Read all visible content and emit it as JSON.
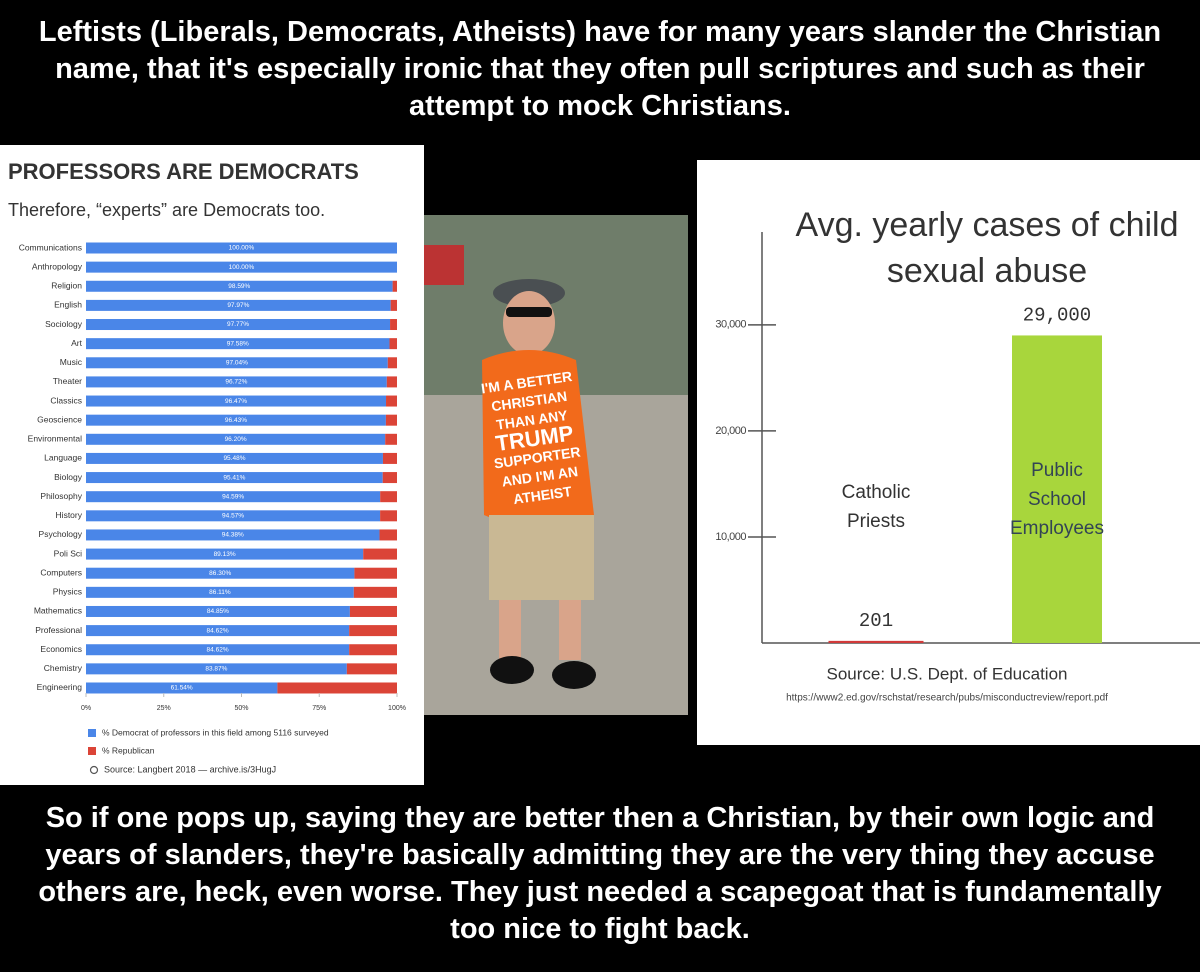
{
  "top_text": "Leftists  (Liberals, Democrats, Atheists) have for many years slander the Christian name, that it's especially ironic that they often pull scriptures and such as their attempt to mock Christians.",
  "chart_data": [
    {
      "type": "stacked-bar-horizontal",
      "title": "PROFESSORS ARE DEMOCRATS",
      "subtitle": "Therefore, “experts” are Democrats too.",
      "categories": [
        "Communications",
        "Anthropology",
        "Religion",
        "English",
        "Sociology",
        "Art",
        "Music",
        "Theater",
        "Classics",
        "Geoscience",
        "Environmental",
        "Language",
        "Biology",
        "Philosophy",
        "History",
        "Psychology",
        "Poli Sci",
        "Computers",
        "Physics",
        "Mathematics",
        "Professional",
        "Economics",
        "Chemistry",
        "Engineering"
      ],
      "series": [
        {
          "name": "% Democrat of professors in this field among 5116 surveyed",
          "color": "#4a86e8",
          "values": [
            100.0,
            100.0,
            98.59,
            97.97,
            97.77,
            97.58,
            97.04,
            96.72,
            96.47,
            96.43,
            96.2,
            95.48,
            95.41,
            94.59,
            94.57,
            94.38,
            89.13,
            86.3,
            86.11,
            84.85,
            84.62,
            84.62,
            83.87,
            61.54
          ],
          "value_labels": [
            "100.00%",
            "100.00%",
            "98.59%",
            "97.97%",
            "97.77%",
            "97.58%",
            "97.04%",
            "96.72%",
            "96.47%",
            "96.43%",
            "96.20%",
            "95.48%",
            "95.41%",
            "94.59%",
            "94.57%",
            "94.38%",
            "89.13%",
            "86.30%",
            "86.11%",
            "84.85%",
            "84.62%",
            "84.62%",
            "83.87%",
            "61.54%"
          ]
        },
        {
          "name": "% Republican",
          "color": "#db4437",
          "values": [
            0,
            0,
            1.41,
            2.03,
            2.23,
            2.42,
            2.96,
            3.28,
            3.53,
            3.57,
            3.8,
            4.52,
            4.59,
            5.41,
            5.43,
            5.62,
            10.87,
            13.7,
            13.89,
            15.15,
            15.38,
            15.38,
            16.13,
            38.46
          ]
        }
      ],
      "xlim": [
        0,
        100
      ],
      "xticks": [
        {
          "value": 0,
          "label": "0%"
        },
        {
          "value": 25,
          "label": "25%"
        },
        {
          "value": 50,
          "label": "50%"
        },
        {
          "value": 75,
          "label": "75%"
        },
        {
          "value": 100,
          "label": "100%"
        }
      ],
      "source": "Source: Langbert 2018 — archive.is/3HugJ"
    },
    {
      "type": "bar",
      "title": "Avg. yearly cases of child sexual abuse",
      "categories": [
        "Catholic Priests",
        "Public School Employees"
      ],
      "values": [
        201,
        29000
      ],
      "value_labels": [
        "201",
        "29,000"
      ],
      "colors": [
        "#d23a3a",
        "#a8d63c"
      ],
      "ylim": [
        0,
        38000
      ],
      "yticks": [
        {
          "value": 10000,
          "label": "10,000"
        },
        {
          "value": 20000,
          "label": "20,000"
        },
        {
          "value": 30000,
          "label": "30,000"
        }
      ],
      "source": "Source: U.S. Dept. of Education",
      "url": "https://www2.ed.gov/rschstat/research/pubs/misconductreview/report.pdf"
    }
  ],
  "photo": {
    "shirt_lines": [
      "I'M A BETTER",
      "CHRISTIAN",
      "THAN ANY",
      "TRUMP",
      "SUPPORTER",
      "AND I'M AN",
      "ATHEIST"
    ]
  },
  "bottom_text": "So if one pops up, saying they are better then a Christian, by their own logic and years of slanders, they're basically admitting they are the very thing they accuse others are, heck, even worse. They just needed a scapegoat that is fundamentally too nice to fight back."
}
